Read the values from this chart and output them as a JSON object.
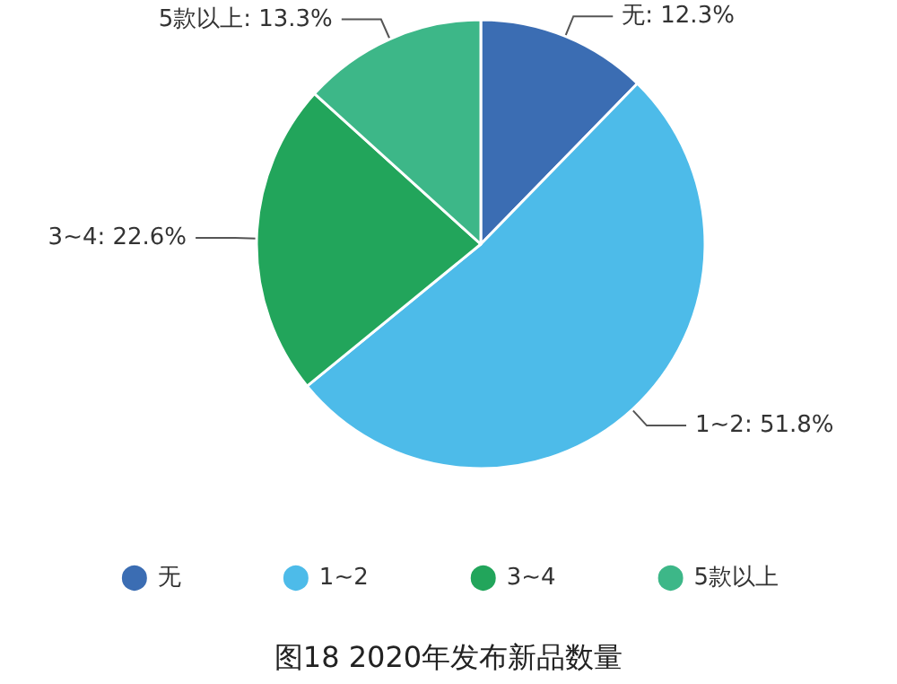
{
  "chart_data": {
    "type": "pie",
    "title": "图18 2020年发布新品数量",
    "categories": [
      "无",
      "1~2",
      "3~4",
      "5款以上"
    ],
    "values": [
      12.3,
      51.8,
      22.6,
      13.3
    ],
    "value_labels": [
      "无: 12.3%",
      "1~2: 51.8%",
      "3~4: 22.6%",
      "5款以上: 13.3%"
    ],
    "colors": [
      "#3b6db3",
      "#4dbbe9",
      "#22a55b",
      "#3db788"
    ],
    "legend": "bottom"
  }
}
